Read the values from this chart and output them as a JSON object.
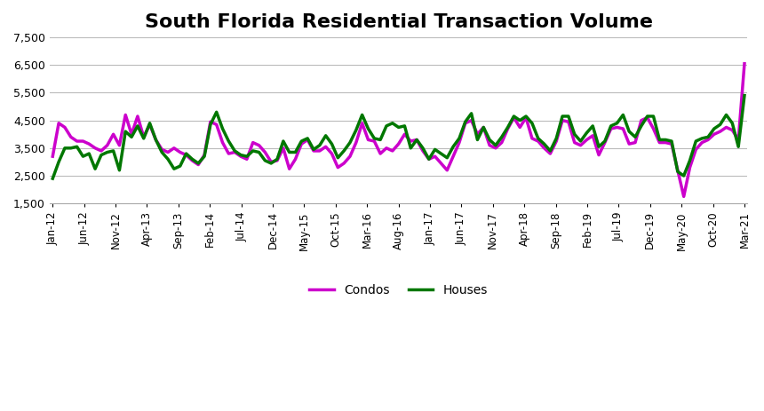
{
  "title": "South Florida Residential Transaction Volume",
  "title_fontsize": 16,
  "title_fontweight": "bold",
  "condos_color": "#CC00CC",
  "houses_color": "#007700",
  "line_width": 2.5,
  "ylim": [
    1500,
    7500
  ],
  "yticks": [
    1500,
    2500,
    3500,
    4500,
    5500,
    6500,
    7500
  ],
  "background_color": "#FFFFFF",
  "grid_color": "#BBBBBB",
  "tick_labels": [
    "Jan-12",
    "Jun-12",
    "Nov-12",
    "Apr-13",
    "Sep-13",
    "Feb-14",
    "Jul-14",
    "Dec-14",
    "May-15",
    "Oct-15",
    "Mar-16",
    "Aug-16",
    "Jan-17",
    "Jun-17",
    "Nov-17",
    "Apr-18",
    "Sep-18",
    "Feb-19",
    "Jul-19",
    "Dec-19",
    "May-20",
    "Oct-20",
    "Mar-21"
  ],
  "condos": [
    3200,
    4400,
    4250,
    3900,
    3750,
    3750,
    3650,
    3500,
    3400,
    3600,
    4000,
    3600,
    4700,
    4000,
    4650,
    3900,
    4350,
    3800,
    3450,
    3350,
    3500,
    3350,
    3250,
    3050,
    2900,
    3250,
    4450,
    4350,
    3700,
    3300,
    3350,
    3200,
    3100,
    3700,
    3600,
    3350,
    3000,
    3050,
    3500,
    2750,
    3100,
    3650,
    3800,
    3400,
    3400,
    3550,
    3300,
    2800,
    2950,
    3200,
    3700,
    4400,
    3800,
    3750,
    3300,
    3500,
    3400,
    3650,
    4000,
    3750,
    3800,
    3400,
    3100,
    3200,
    2950,
    2700,
    3200,
    3700,
    4400,
    4500,
    4000,
    4250,
    3600,
    3500,
    3700,
    4200,
    4600,
    4250,
    4600,
    3850,
    3750,
    3500,
    3300,
    3750,
    4500,
    4450,
    3700,
    3600,
    3800,
    3950,
    3250,
    3700,
    4200,
    4250,
    4200,
    3650,
    3700,
    4500,
    4600,
    4200,
    3700,
    3700,
    3650,
    2700,
    1750,
    2800,
    3450,
    3700,
    3800,
    4000,
    4100,
    4250,
    4150,
    3800,
    6550
  ],
  "houses": [
    2400,
    3000,
    3500,
    3500,
    3550,
    3200,
    3300,
    2750,
    3250,
    3350,
    3400,
    2700,
    4100,
    3900,
    4300,
    3850,
    4400,
    3800,
    3350,
    3100,
    2750,
    2850,
    3300,
    3100,
    2950,
    3200,
    4350,
    4800,
    4200,
    3750,
    3400,
    3250,
    3200,
    3400,
    3350,
    3050,
    2950,
    3100,
    3750,
    3350,
    3350,
    3750,
    3850,
    3450,
    3600,
    3950,
    3650,
    3150,
    3400,
    3700,
    4150,
    4700,
    4200,
    3850,
    3800,
    4300,
    4400,
    4250,
    4300,
    3500,
    3800,
    3500,
    3100,
    3450,
    3300,
    3150,
    3550,
    3850,
    4450,
    4750,
    3800,
    4250,
    3800,
    3600,
    3900,
    4250,
    4650,
    4500,
    4650,
    4400,
    3850,
    3650,
    3400,
    3850,
    4650,
    4650,
    4000,
    3750,
    4050,
    4300,
    3550,
    3750,
    4300,
    4400,
    4700,
    4100,
    3900,
    4300,
    4650,
    4650,
    3800,
    3800,
    3750,
    2650,
    2500,
    3050,
    3750,
    3850,
    3900,
    4200,
    4350,
    4700,
    4400,
    3550,
    5400
  ]
}
